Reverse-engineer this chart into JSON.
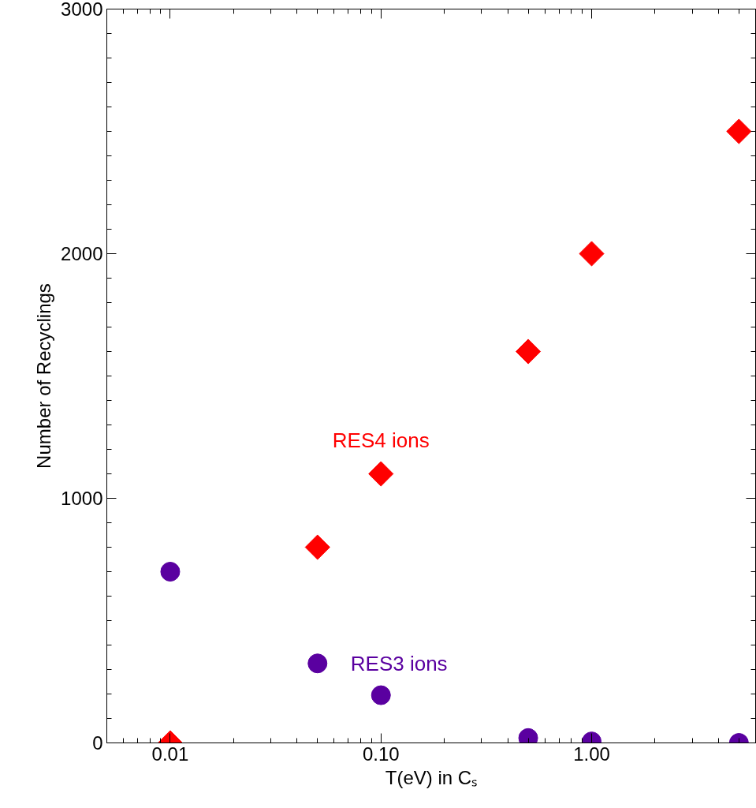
{
  "chart_data": {
    "type": "scatter",
    "xlabel": "T(eV) in Cₛ",
    "ylabel": "Number of Recyclings",
    "log": "x",
    "xlim": [
      0.005,
      6
    ],
    "ylim": [
      0,
      3000
    ],
    "xticks": [
      {
        "value": 0.01,
        "label": "0.01"
      },
      {
        "value": 0.1,
        "label": "0.10"
      },
      {
        "value": 1,
        "label": "1.00"
      }
    ],
    "yticks": [
      0,
      1000,
      2000,
      3000
    ],
    "grid": false,
    "legend": false,
    "series": [
      {
        "name": "RES4 ions",
        "color": "#ff0000",
        "marker": "diamond",
        "x": [
          0.01,
          0.05,
          0.1,
          0.5,
          1,
          5
        ],
        "values": [
          0,
          800,
          1100,
          1600,
          2000,
          2500
        ]
      },
      {
        "name": "RES3 ions",
        "color": "#5a00a0",
        "marker": "circle",
        "x": [
          0.01,
          0.05,
          0.1,
          0.5,
          1,
          5
        ],
        "values": [
          700,
          325,
          195,
          20,
          6,
          0
        ]
      }
    ]
  }
}
